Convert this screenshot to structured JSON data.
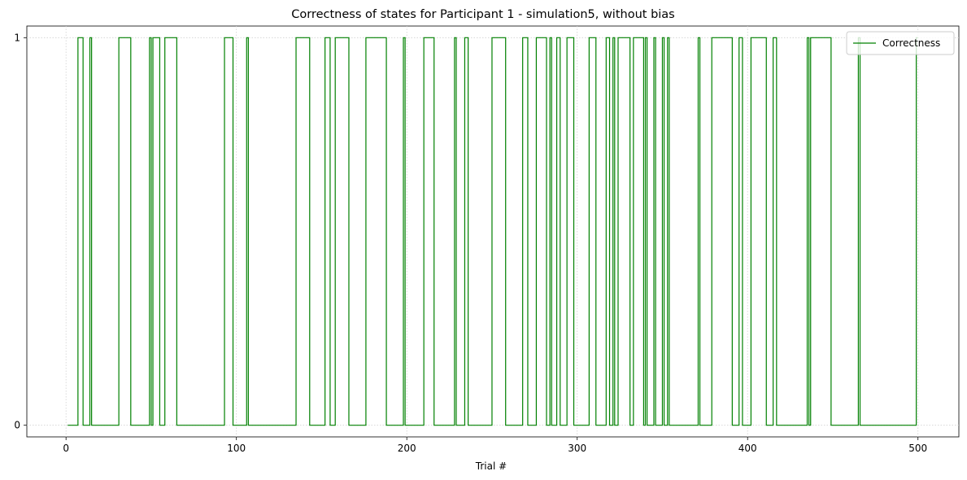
{
  "chart_data": {
    "type": "line",
    "title": "Correctness of states for Participant 1 - simulation5, without bias",
    "xlabel": "Trial #",
    "ylabel": "",
    "xlim": [
      -23,
      524
    ],
    "ylim": [
      -0.03,
      1.03
    ],
    "x_ticks": [
      0,
      100,
      200,
      300,
      400,
      500
    ],
    "y_ticks": [
      0,
      1
    ],
    "grid": true,
    "step": true,
    "line_color": "#008000",
    "legend": {
      "position": "top-right",
      "entries": [
        "Correctness"
      ]
    },
    "series": [
      {
        "name": "Correctness",
        "segments_value_1": [
          [
            7,
            10
          ],
          [
            14,
            15
          ],
          [
            31,
            38
          ],
          [
            49,
            50
          ],
          [
            51,
            55
          ],
          [
            58,
            65
          ],
          [
            93,
            98
          ],
          [
            106,
            107
          ],
          [
            135,
            143
          ],
          [
            152,
            155
          ],
          [
            158,
            166
          ],
          [
            176,
            188
          ],
          [
            198,
            199
          ],
          [
            210,
            216
          ],
          [
            228,
            229
          ],
          [
            234,
            236
          ],
          [
            250,
            258
          ],
          [
            268,
            271
          ],
          [
            276,
            282
          ],
          [
            284,
            285
          ],
          [
            288,
            290
          ],
          [
            294,
            298
          ],
          [
            307,
            311
          ],
          [
            317,
            319
          ],
          [
            321,
            322
          ],
          [
            324,
            331
          ],
          [
            333,
            339
          ],
          [
            340,
            341
          ],
          [
            345,
            346
          ],
          [
            350,
            351
          ],
          [
            353,
            354
          ],
          [
            371,
            372
          ],
          [
            379,
            391
          ],
          [
            395,
            397
          ],
          [
            402,
            411
          ],
          [
            415,
            417
          ],
          [
            435,
            436
          ],
          [
            437,
            449
          ],
          [
            465,
            466
          ],
          [
            499,
            500
          ]
        ],
        "x_start": 1,
        "x_end": 500
      }
    ]
  }
}
